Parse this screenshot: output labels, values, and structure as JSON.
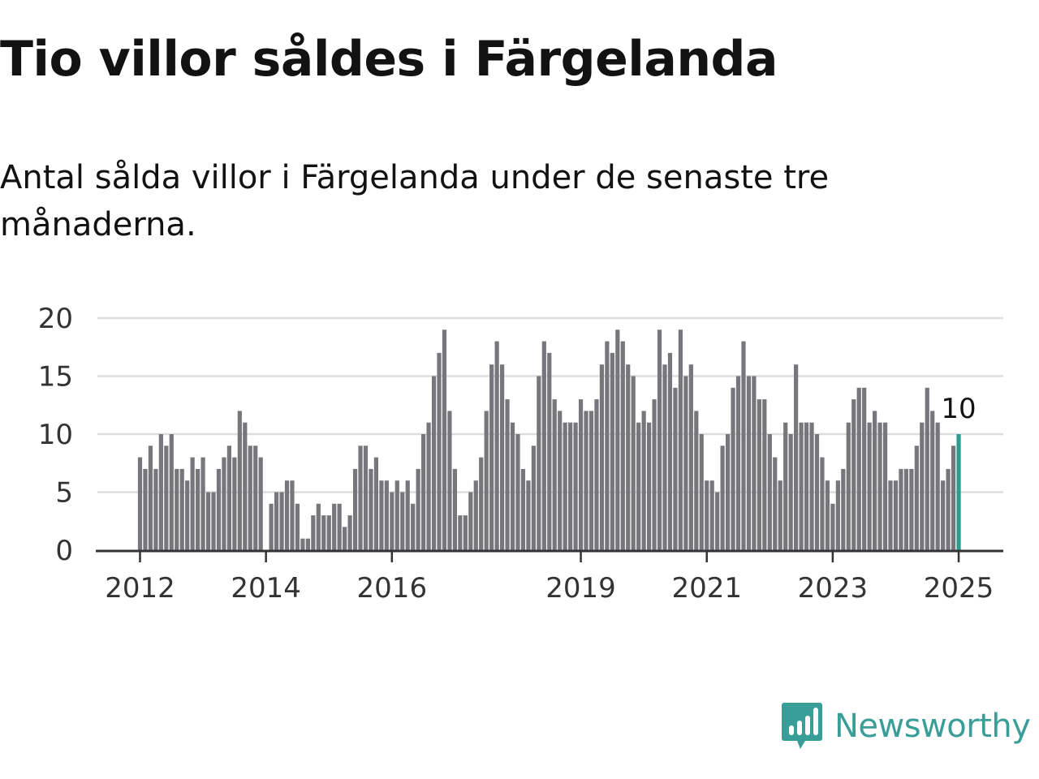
{
  "title": "Tio villor såldes i Färgelanda",
  "subtitle": "Antal sålda villor i Färgelanda under de senaste tre månaderna.",
  "logo": {
    "text": "Newsworthy",
    "icon": "newsworthy-logo-icon",
    "color": "#3a9e98"
  },
  "colors": {
    "bar": "#77767b",
    "highlight": "#2a9d8f",
    "grid": "#dddddd",
    "axis": "#333333"
  },
  "chart_data": {
    "type": "bar",
    "title": "Tio villor såldes i Färgelanda",
    "xlabel": "",
    "ylabel": "",
    "ylim": [
      0,
      20
    ],
    "yticks": [
      "0",
      "5",
      "10",
      "15",
      "20"
    ],
    "grid": true,
    "x_ticks": [
      "2012",
      "2014",
      "2016",
      "2019",
      "2021",
      "2023",
      "2025"
    ],
    "categories": [
      "2012-01",
      "2012-02",
      "2012-03",
      "2012-04",
      "2012-05",
      "2012-06",
      "2012-07",
      "2012-08",
      "2012-09",
      "2012-10",
      "2012-11",
      "2012-12",
      "2013-01",
      "2013-02",
      "2013-03",
      "2013-04",
      "2013-05",
      "2013-06",
      "2013-07",
      "2013-08",
      "2013-09",
      "2013-10",
      "2013-11",
      "2013-12",
      "2014-01",
      "2014-02",
      "2014-03",
      "2014-04",
      "2014-05",
      "2014-06",
      "2014-07",
      "2014-08",
      "2014-09",
      "2014-10",
      "2014-11",
      "2014-12",
      "2015-01",
      "2015-02",
      "2015-03",
      "2015-04",
      "2015-05",
      "2015-06",
      "2015-07",
      "2015-08",
      "2015-09",
      "2015-10",
      "2015-11",
      "2015-12",
      "2016-01",
      "2016-02",
      "2016-03",
      "2016-04",
      "2016-05",
      "2016-06",
      "2016-07",
      "2016-08",
      "2016-09",
      "2016-10",
      "2016-11",
      "2016-12",
      "2017-01",
      "2017-02",
      "2017-03",
      "2017-04",
      "2017-05",
      "2017-06",
      "2017-07",
      "2017-08",
      "2017-09",
      "2017-10",
      "2017-11",
      "2017-12",
      "2018-01",
      "2018-02",
      "2018-03",
      "2018-04",
      "2018-05",
      "2018-06",
      "2018-07",
      "2018-08",
      "2018-09",
      "2018-10",
      "2018-11",
      "2018-12",
      "2019-01",
      "2019-02",
      "2019-03",
      "2019-04",
      "2019-05",
      "2019-06",
      "2019-07",
      "2019-08",
      "2019-09",
      "2019-10",
      "2019-11",
      "2019-12",
      "2020-01",
      "2020-02",
      "2020-03",
      "2020-04",
      "2020-05",
      "2020-06",
      "2020-07",
      "2020-08",
      "2020-09",
      "2020-10",
      "2020-11",
      "2020-12",
      "2021-01",
      "2021-02",
      "2021-03",
      "2021-04",
      "2021-05",
      "2021-06",
      "2021-07",
      "2021-08",
      "2021-09",
      "2021-10",
      "2021-11",
      "2021-12",
      "2022-01",
      "2022-02",
      "2022-03",
      "2022-04",
      "2022-05",
      "2022-06",
      "2022-07",
      "2022-08",
      "2022-09",
      "2022-10",
      "2022-11",
      "2022-12",
      "2023-01",
      "2023-02",
      "2023-03",
      "2023-04",
      "2023-05",
      "2023-06",
      "2023-07",
      "2023-08",
      "2023-09",
      "2023-10",
      "2023-11",
      "2023-12",
      "2024-01",
      "2024-02",
      "2024-03",
      "2024-04",
      "2024-05",
      "2024-06",
      "2024-07",
      "2024-08",
      "2024-09",
      "2024-10",
      "2024-11",
      "2024-12",
      "2025-01"
    ],
    "values": [
      8,
      7,
      9,
      7,
      10,
      9,
      10,
      7,
      7,
      6,
      8,
      7,
      8,
      5,
      5,
      7,
      8,
      9,
      8,
      12,
      11,
      9,
      9,
      8,
      0,
      4,
      5,
      5,
      6,
      6,
      4,
      1,
      1,
      3,
      4,
      3,
      3,
      4,
      4,
      2,
      3,
      7,
      9,
      9,
      7,
      8,
      6,
      6,
      5,
      6,
      5,
      6,
      4,
      7,
      10,
      11,
      15,
      17,
      19,
      12,
      7,
      3,
      3,
      5,
      6,
      8,
      12,
      16,
      18,
      16,
      13,
      11,
      10,
      7,
      6,
      9,
      15,
      18,
      17,
      13,
      12,
      11,
      11,
      11,
      13,
      12,
      12,
      13,
      16,
      18,
      17,
      19,
      18,
      16,
      15,
      11,
      12,
      11,
      13,
      19,
      16,
      17,
      14,
      19,
      15,
      16,
      12,
      10,
      6,
      6,
      5,
      9,
      10,
      14,
      15,
      18,
      15,
      15,
      13,
      13,
      10,
      8,
      6,
      11,
      10,
      16,
      11,
      11,
      11,
      10,
      8,
      6,
      4,
      6,
      7,
      11,
      13,
      14,
      14,
      11,
      12,
      11,
      11,
      6,
      6,
      7,
      7,
      7,
      9,
      11,
      14,
      12,
      11,
      6,
      7,
      9,
      10
    ],
    "last_value_label": "10"
  }
}
